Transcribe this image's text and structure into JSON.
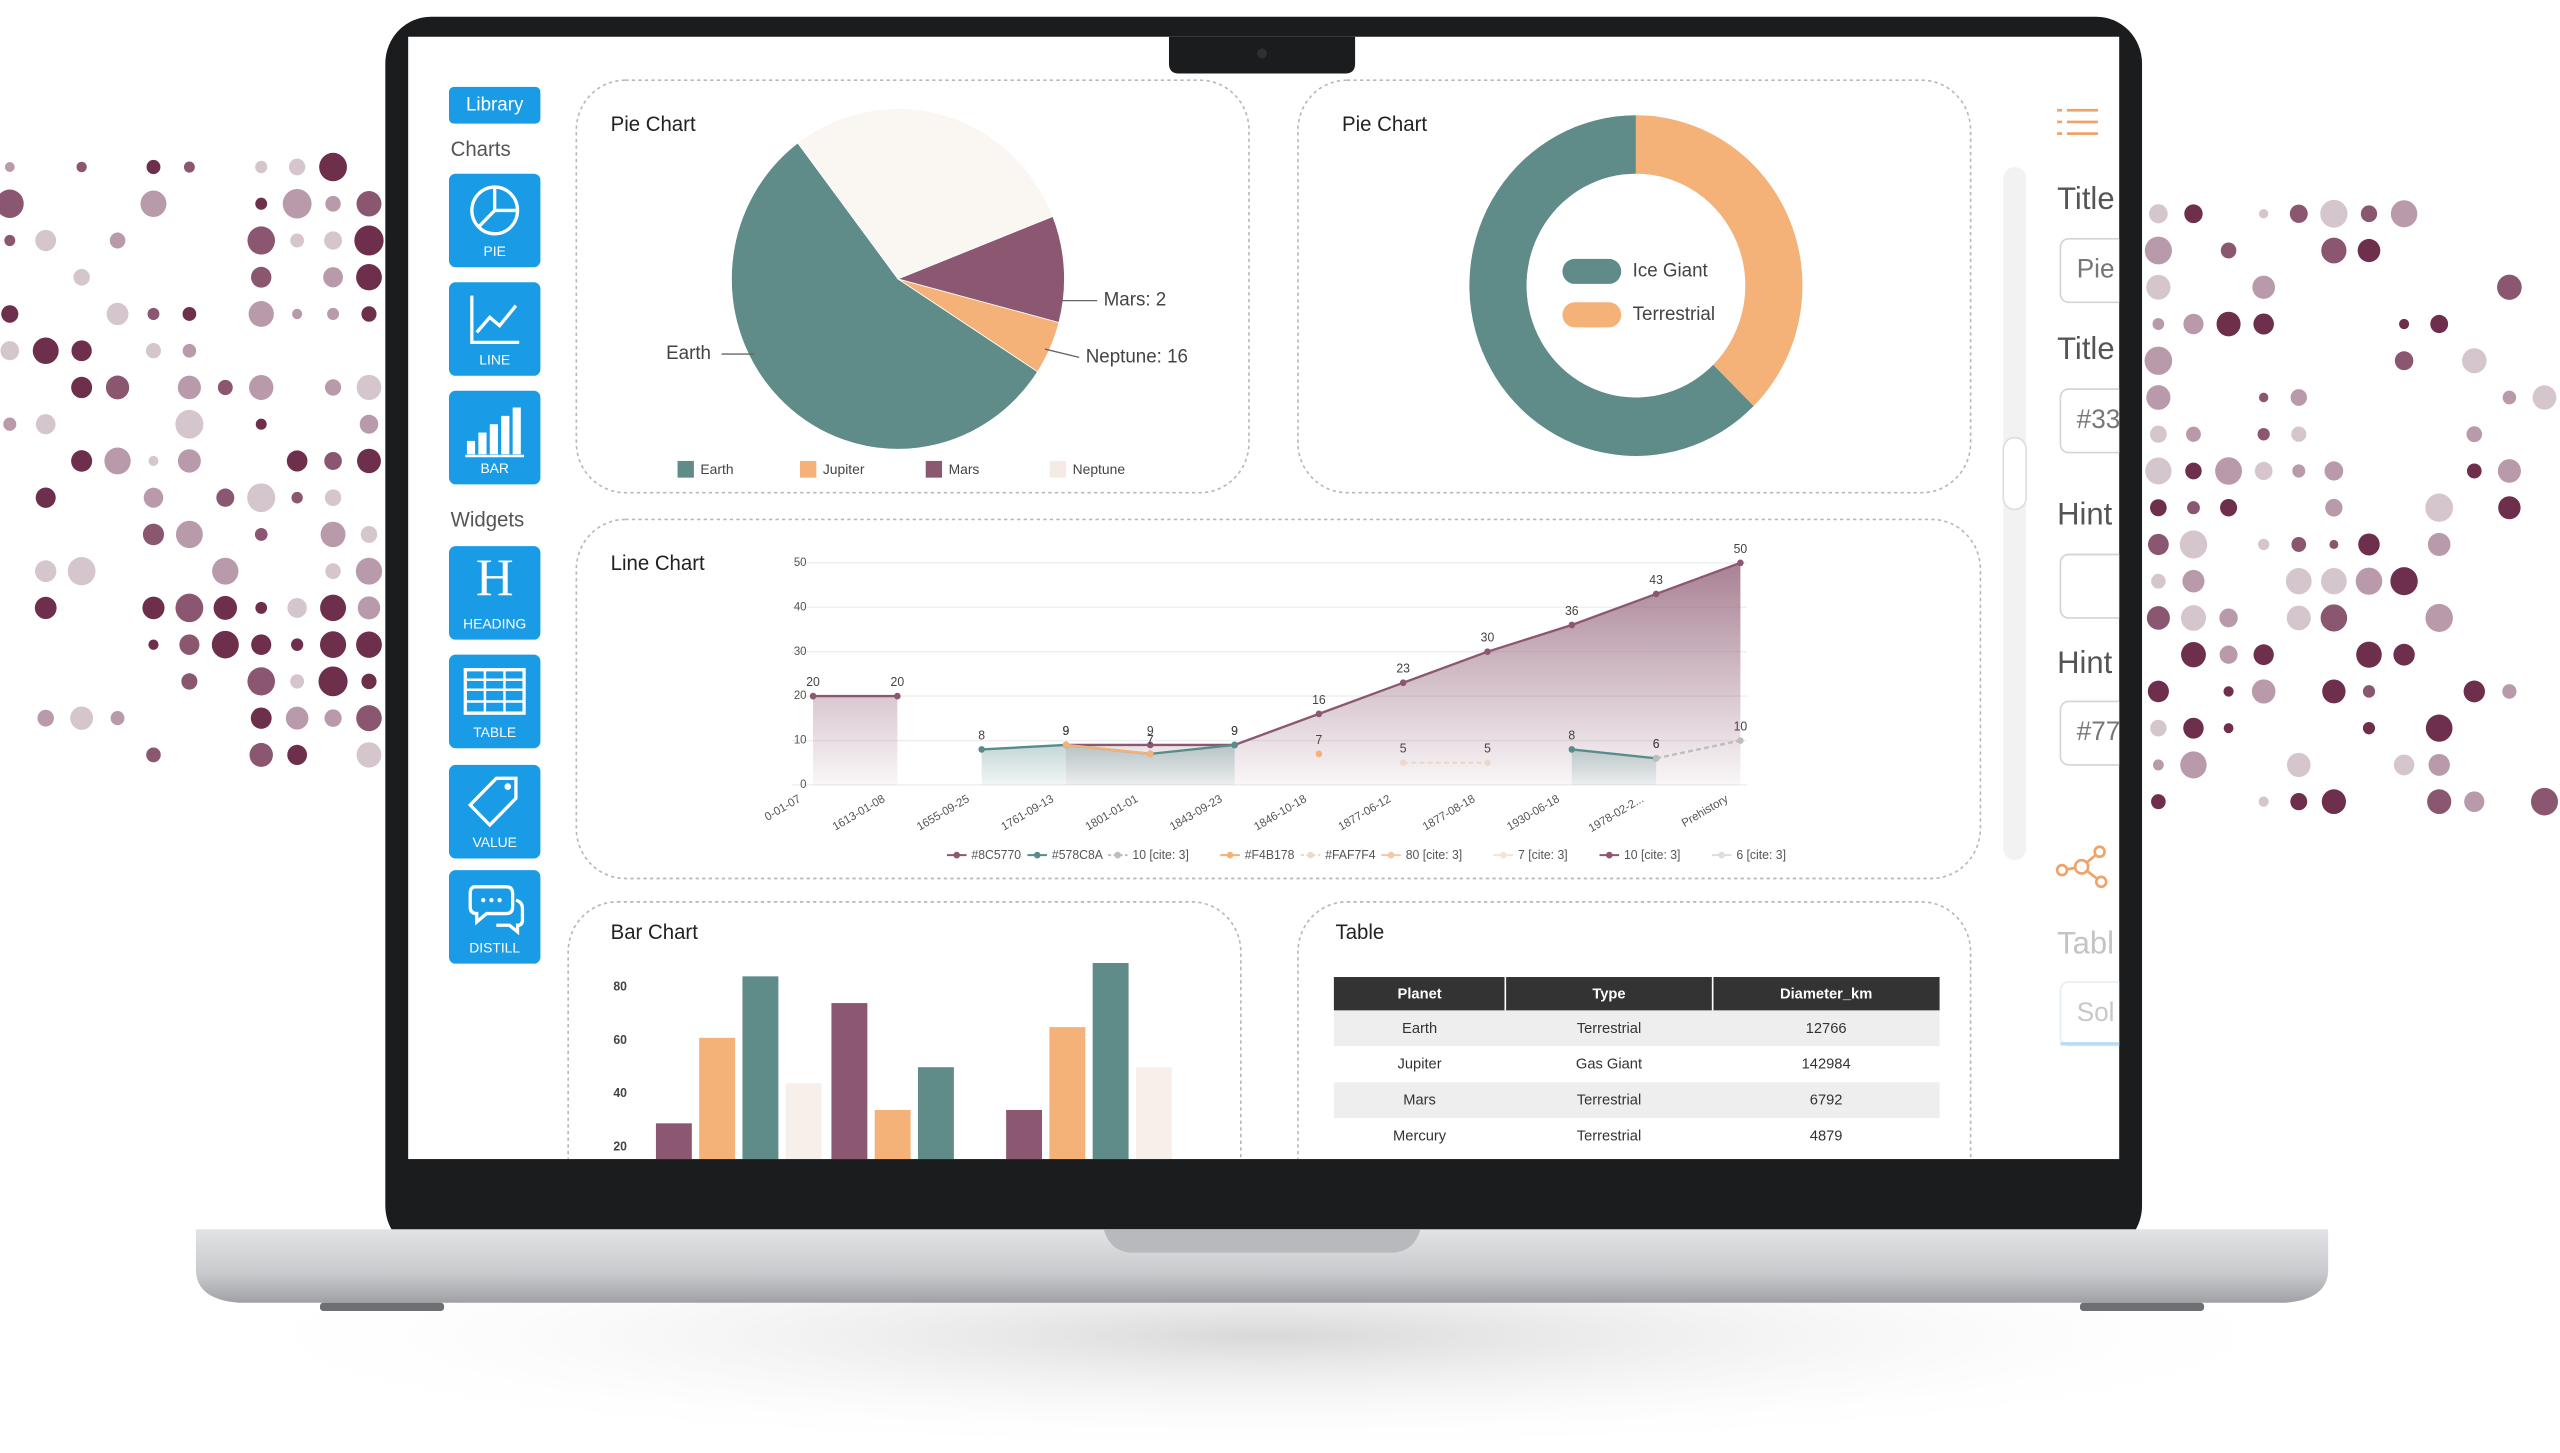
{
  "sidebar": {
    "library": "Library",
    "charts_heading": "Charts",
    "chart_tools": [
      "PIE",
      "LINE",
      "BAR"
    ],
    "widgets_heading": "Widgets",
    "heading_icon": "H",
    "widget_tools": [
      "HEADING",
      "TABLE",
      "VALUE",
      "DISTILL"
    ]
  },
  "chart_data": [
    {
      "type": "pie",
      "title": "Pie Chart",
      "categories": [
        "Earth",
        "Jupiter",
        "Mars",
        "Neptune"
      ],
      "values": [
        55,
        5,
        10,
        29
      ],
      "colors": [
        "#5f8b89",
        "#f4b178",
        "#8c5770",
        "#faf6f2"
      ],
      "annotations": [
        {
          "text": "Earth"
        },
        {
          "text": "Mars: 2"
        },
        {
          "text": "Neptune: 16"
        }
      ],
      "legend": "bottom"
    },
    {
      "type": "donut",
      "title": "Pie Chart",
      "categories": [
        "Ice Giant",
        "Terrestrial"
      ],
      "values": [
        62.5,
        37.5
      ],
      "colors": [
        "#5f8b89",
        "#f4b178"
      ],
      "legend": "center"
    },
    {
      "type": "line",
      "title": "Line Chart",
      "categories": [
        "0-01-07",
        "1613-01-08",
        "1655-09-25",
        "1761-09-13",
        "1801-01-01",
        "1843-09-23",
        "1846-10-18",
        "1877-06-12",
        "1877-08-18",
        "1930-06-18",
        "1978-02-2...",
        "Prehistory"
      ],
      "series": [
        {
          "name": "#8C5770",
          "color": "#8c5770",
          "area": true,
          "values": [
            20,
            20,
            null,
            9,
            9,
            9,
            16,
            23,
            30,
            36,
            43,
            50
          ]
        },
        {
          "name": "#578C8A",
          "color": "#578c8a",
          "area": true,
          "values": [
            null,
            null,
            8,
            9,
            7,
            9,
            null,
            null,
            null,
            8,
            6,
            null
          ]
        },
        {
          "name": "10 [cite: 3]",
          "color": "#bdbdbd",
          "dashed": true,
          "values": [
            null,
            null,
            null,
            null,
            null,
            null,
            null,
            null,
            null,
            null,
            6,
            10
          ]
        },
        {
          "name": "#F4B178",
          "color": "#f4b178",
          "values": [
            null,
            null,
            null,
            9,
            7,
            null,
            7,
            null,
            null,
            null,
            null,
            null
          ]
        },
        {
          "name": "#FAF7F4",
          "color": "#eed8cc",
          "dashed": true,
          "values": [
            null,
            null,
            null,
            null,
            null,
            null,
            null,
            5,
            5,
            null,
            null,
            null
          ]
        },
        {
          "name": "80 [cite: 3]",
          "color": "#f4c7a8",
          "values": [
            null,
            null,
            null,
            null,
            null,
            null,
            null,
            null,
            null,
            null,
            null,
            null
          ]
        },
        {
          "name": "7 [cite: 3]",
          "color": "#f5e3d6",
          "values": [
            null,
            null,
            null,
            null,
            null,
            null,
            null,
            null,
            null,
            null,
            null,
            null
          ]
        },
        {
          "name": "10 [cite: 3]",
          "color": "#8c5770",
          "values": [
            null,
            null,
            null,
            null,
            null,
            null,
            null,
            null,
            null,
            null,
            null,
            null
          ]
        },
        {
          "name": "6 [cite: 3]",
          "color": "#dddddd",
          "values": [
            null,
            null,
            null,
            null,
            null,
            null,
            null,
            null,
            null,
            null,
            null,
            null
          ]
        }
      ],
      "ylim": [
        0,
        50
      ],
      "yticks": [
        0,
        10,
        20,
        30,
        40,
        50
      ],
      "grid": true,
      "legend": "bottom"
    },
    {
      "type": "bar",
      "title": "Bar Chart",
      "categories": [
        null,
        null,
        null
      ],
      "series": [
        {
          "color": "#8c5770",
          "values": [
            29,
            74,
            34
          ]
        },
        {
          "color": "#f4b178",
          "values": [
            61,
            34,
            65
          ]
        },
        {
          "color": "#5f8b89",
          "values": [
            84,
            50,
            89
          ]
        },
        {
          "color": "#f7f0ea",
          "values": [
            44,
            null,
            50
          ]
        }
      ],
      "ylim": [
        0,
        90
      ],
      "yticks": [
        20,
        40,
        60,
        80
      ]
    }
  ],
  "table": {
    "title": "Table",
    "columns": [
      "Planet",
      "Type",
      "Diameter_km"
    ],
    "rows": [
      [
        "Earth",
        "Terrestrial",
        12766
      ],
      [
        "Jupiter",
        "Gas Giant",
        142984
      ],
      [
        "Mars",
        "Terrestrial",
        6792
      ],
      [
        "Mercury",
        "Terrestrial",
        4879
      ]
    ]
  },
  "settings_panel": {
    "fields": [
      {
        "label": "Title",
        "value": "Pie"
      },
      {
        "label": "Title",
        "value": "#33"
      },
      {
        "label": "Hint"
      },
      {
        "label": "Hint",
        "value": "#77"
      },
      {
        "label": "Tabl",
        "value": "Sol"
      }
    ]
  }
}
